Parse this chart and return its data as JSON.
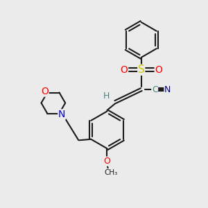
{
  "bg_color": "#ebebeb",
  "bond_color": "#1a1a1a",
  "bond_width": 1.5,
  "dbo": 0.055,
  "colors": {
    "O": "#ff0000",
    "N": "#0000cc",
    "S": "#cccc00",
    "C": "#4a8080",
    "H": "#4a8080",
    "N_nitrile": "#000080"
  }
}
